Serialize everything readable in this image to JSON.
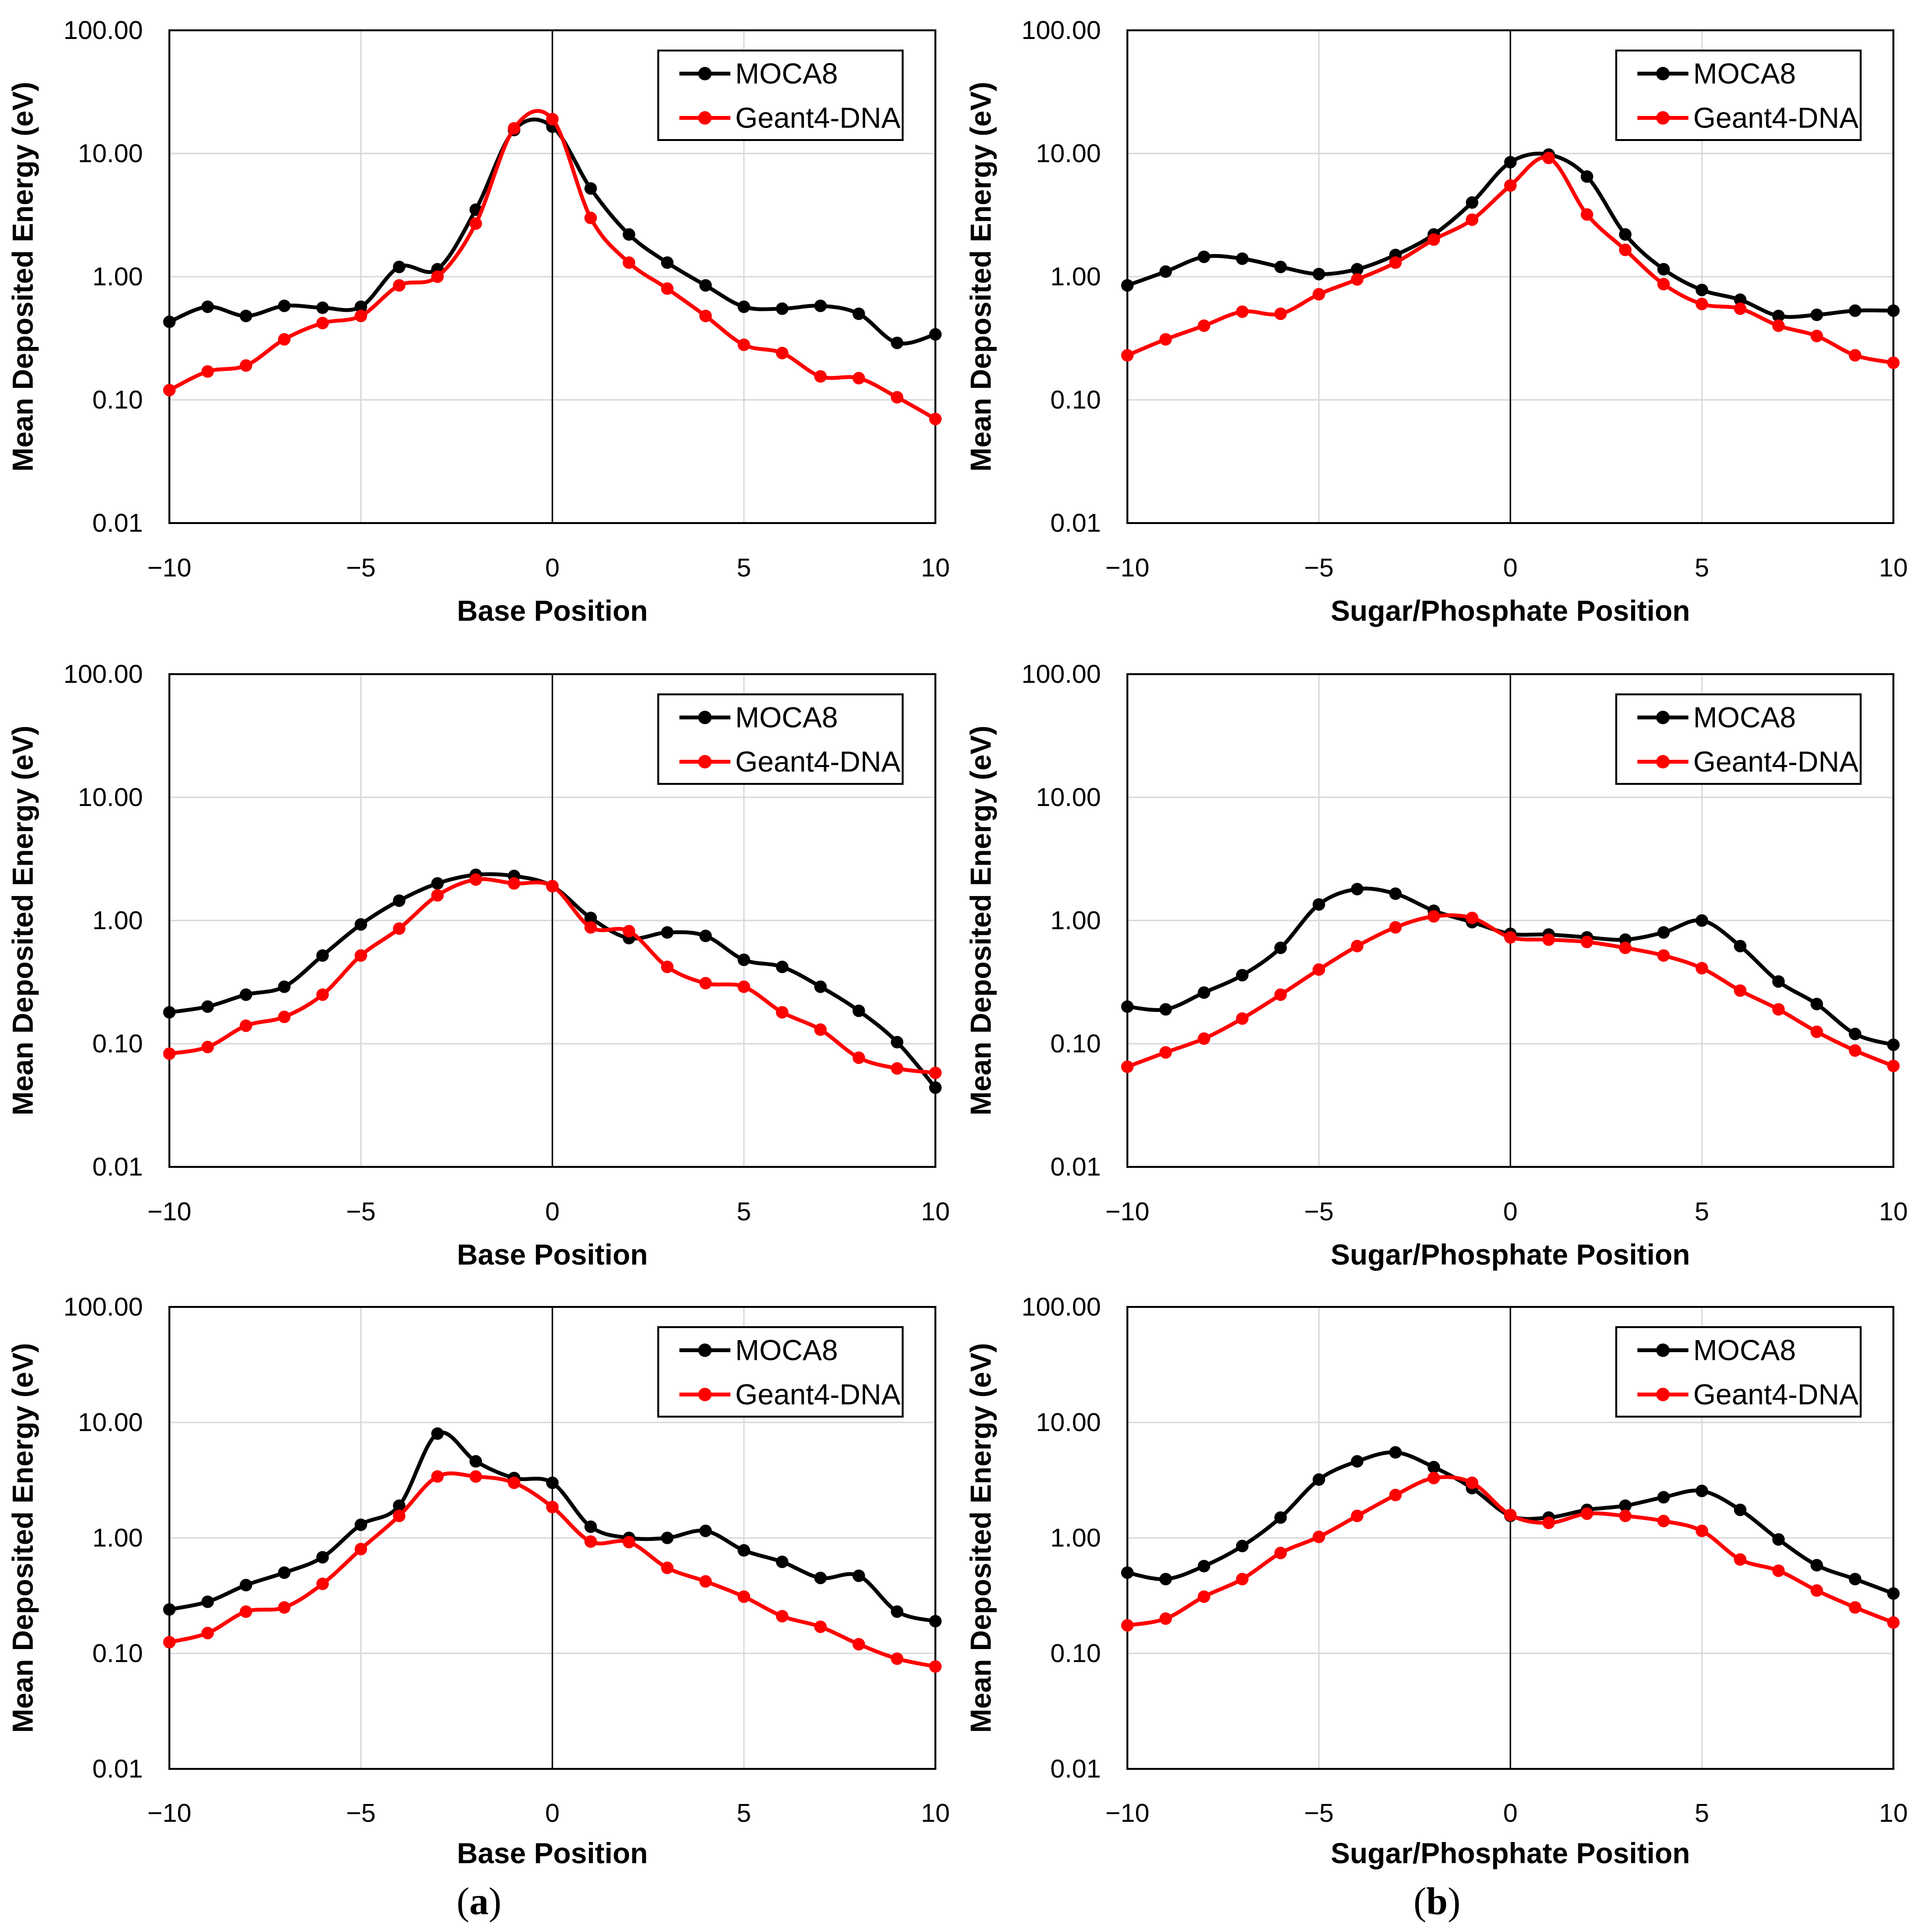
{
  "figure": {
    "y_axis_label": "Mean Deposited Energy (eV)",
    "y_tick_labels": [
      "100.00",
      "10.00",
      "1.00",
      "0.10",
      "0.01"
    ],
    "y_tick_values": [
      100,
      10,
      1,
      0.1,
      0.01
    ],
    "x_tick_labels": [
      "−10",
      "−5",
      "0",
      "5",
      "10"
    ],
    "x_tick_values": [
      -10,
      -5,
      0,
      5,
      10
    ],
    "colors": {
      "moca8": "#000000",
      "geant4_dna": "#FF0000",
      "gridline": "#D9D9D9",
      "axis": "#000000",
      "background": "#FFFFFF"
    },
    "legend_labels": [
      "MOCA8",
      "Geant4-DNA"
    ],
    "captions": [
      {
        "open": "(",
        "letter": "a",
        "close": ")"
      },
      {
        "open": "(",
        "letter": "b",
        "close": ")"
      }
    ]
  },
  "chart_data": [
    {
      "type": "line",
      "panel": "top-left",
      "title": "",
      "xlabel": "Base Position",
      "ylabel": "Mean Deposited Energy (eV)",
      "xlim": [
        -10,
        10
      ],
      "ylim": [
        0.01,
        100
      ],
      "yscale": "log",
      "grid": true,
      "legend_position": "top-right",
      "x": [
        -10,
        -9,
        -8,
        -7,
        -6,
        -5,
        -4,
        -3,
        -2,
        -1,
        0,
        1,
        2,
        3,
        4,
        5,
        6,
        7,
        8,
        9,
        10
      ],
      "series": [
        {
          "name": "MOCA8",
          "color": "#000000",
          "values": [
            0.43,
            0.57,
            0.48,
            0.58,
            0.56,
            0.57,
            1.2,
            1.15,
            3.5,
            15.5,
            16.5,
            5.2,
            2.2,
            1.3,
            0.85,
            0.57,
            0.55,
            0.58,
            0.5,
            0.29,
            0.34
          ]
        },
        {
          "name": "Geant4-DNA",
          "color": "#FF0000",
          "values": [
            0.12,
            0.17,
            0.19,
            0.31,
            0.42,
            0.48,
            0.85,
            1.0,
            2.7,
            16.0,
            19.0,
            3.0,
            1.3,
            0.8,
            0.48,
            0.28,
            0.24,
            0.155,
            0.15,
            0.105,
            0.07
          ]
        }
      ]
    },
    {
      "type": "line",
      "panel": "top-right",
      "title": "",
      "xlabel": "Sugar/Phosphate Position",
      "ylabel": "Mean Deposited Energy (eV)",
      "xlim": [
        -10,
        10
      ],
      "ylim": [
        0.01,
        100
      ],
      "yscale": "log",
      "grid": true,
      "legend_position": "top-right",
      "x": [
        -10,
        -9,
        -8,
        -7,
        -6,
        -5,
        -4,
        -3,
        -2,
        -1,
        0,
        1,
        2,
        3,
        4,
        5,
        6,
        7,
        8,
        9,
        10
      ],
      "series": [
        {
          "name": "MOCA8",
          "color": "#000000",
          "values": [
            0.85,
            1.1,
            1.45,
            1.4,
            1.2,
            1.05,
            1.15,
            1.5,
            2.2,
            4.0,
            8.5,
            9.8,
            6.5,
            2.2,
            1.15,
            0.78,
            0.65,
            0.48,
            0.49,
            0.53,
            0.53
          ]
        },
        {
          "name": "Geant4-DNA",
          "color": "#FF0000",
          "values": [
            0.23,
            0.31,
            0.4,
            0.52,
            0.5,
            0.72,
            0.95,
            1.3,
            2.0,
            2.9,
            5.5,
            9.2,
            3.2,
            1.65,
            0.87,
            0.6,
            0.55,
            0.4,
            0.33,
            0.23,
            0.2
          ]
        }
      ]
    },
    {
      "type": "line",
      "panel": "middle-left",
      "title": "",
      "xlabel": "Base Position",
      "ylabel": "Mean Deposited Energy (eV)",
      "xlim": [
        -10,
        10
      ],
      "ylim": [
        0.01,
        100
      ],
      "yscale": "log",
      "grid": true,
      "legend_position": "top-right",
      "x": [
        -10,
        -9,
        -8,
        -7,
        -6,
        -5,
        -4,
        -3,
        -2,
        -1,
        0,
        1,
        2,
        3,
        4,
        5,
        6,
        7,
        8,
        9,
        10
      ],
      "series": [
        {
          "name": "MOCA8",
          "color": "#000000",
          "values": [
            0.18,
            0.2,
            0.25,
            0.29,
            0.52,
            0.93,
            1.45,
            2.0,
            2.35,
            2.3,
            1.9,
            1.05,
            0.72,
            0.8,
            0.75,
            0.48,
            0.42,
            0.29,
            0.185,
            0.103,
            0.044
          ]
        },
        {
          "name": "Geant4-DNA",
          "color": "#FF0000",
          "values": [
            0.083,
            0.094,
            0.14,
            0.165,
            0.25,
            0.52,
            0.86,
            1.6,
            2.15,
            2.0,
            1.9,
            0.88,
            0.82,
            0.42,
            0.31,
            0.29,
            0.18,
            0.13,
            0.077,
            0.063,
            0.058
          ]
        }
      ]
    },
    {
      "type": "line",
      "panel": "middle-right",
      "title": "",
      "xlabel": "Sugar/Phosphate Position",
      "ylabel": "Mean Deposited Energy (eV)",
      "xlim": [
        -10,
        10
      ],
      "ylim": [
        0.01,
        100
      ],
      "yscale": "log",
      "grid": true,
      "legend_position": "top-right",
      "x": [
        -10,
        -9,
        -8,
        -7,
        -6,
        -5,
        -4,
        -3,
        -2,
        -1,
        0,
        1,
        2,
        3,
        4,
        5,
        6,
        7,
        8,
        9,
        10
      ],
      "series": [
        {
          "name": "MOCA8",
          "color": "#000000",
          "values": [
            0.2,
            0.19,
            0.26,
            0.36,
            0.6,
            1.35,
            1.8,
            1.65,
            1.2,
            0.97,
            0.78,
            0.77,
            0.73,
            0.7,
            0.8,
            1.0,
            0.62,
            0.32,
            0.21,
            0.12,
            0.098
          ]
        },
        {
          "name": "Geant4-DNA",
          "color": "#FF0000",
          "values": [
            0.065,
            0.085,
            0.11,
            0.16,
            0.25,
            0.4,
            0.62,
            0.88,
            1.08,
            1.05,
            0.73,
            0.7,
            0.67,
            0.6,
            0.52,
            0.41,
            0.27,
            0.19,
            0.125,
            0.088,
            0.066
          ]
        }
      ]
    },
    {
      "type": "line",
      "panel": "bottom-left",
      "title": "",
      "xlabel": "Base Position",
      "ylabel": "Mean Deposited Energy (eV)",
      "xlim": [
        -10,
        10
      ],
      "ylim": [
        0.01,
        100
      ],
      "yscale": "log",
      "grid": true,
      "legend_position": "top-right",
      "x": [
        -10,
        -9,
        -8,
        -7,
        -6,
        -5,
        -4,
        -3,
        -2,
        -1,
        0,
        1,
        2,
        3,
        4,
        5,
        6,
        7,
        8,
        9,
        10
      ],
      "series": [
        {
          "name": "MOCA8",
          "color": "#000000",
          "values": [
            0.24,
            0.28,
            0.39,
            0.5,
            0.68,
            1.3,
            1.9,
            8.0,
            4.6,
            3.3,
            3.0,
            1.25,
            1.0,
            1.0,
            1.15,
            0.78,
            0.62,
            0.45,
            0.47,
            0.23,
            0.19
          ]
        },
        {
          "name": "Geant4-DNA",
          "color": "#FF0000",
          "values": [
            0.125,
            0.15,
            0.23,
            0.25,
            0.4,
            0.8,
            1.55,
            3.4,
            3.4,
            3.0,
            1.85,
            0.93,
            0.92,
            0.55,
            0.42,
            0.31,
            0.21,
            0.17,
            0.12,
            0.09,
            0.077
          ]
        }
      ]
    },
    {
      "type": "line",
      "panel": "bottom-right",
      "title": "",
      "xlabel": "Sugar/Phosphate Position",
      "ylabel": "Mean Deposited Energy (eV)",
      "xlim": [
        -10,
        10
      ],
      "ylim": [
        0.01,
        100
      ],
      "yscale": "log",
      "grid": true,
      "legend_position": "top-right",
      "x": [
        -10,
        -9,
        -8,
        -7,
        -6,
        -5,
        -4,
        -3,
        -2,
        -1,
        0,
        1,
        2,
        3,
        4,
        5,
        6,
        7,
        8,
        9,
        10
      ],
      "series": [
        {
          "name": "MOCA8",
          "color": "#000000",
          "values": [
            0.5,
            0.44,
            0.57,
            0.85,
            1.5,
            3.2,
            4.6,
            5.5,
            4.1,
            2.7,
            1.55,
            1.5,
            1.75,
            1.9,
            2.25,
            2.55,
            1.75,
            0.97,
            0.58,
            0.44,
            0.33
          ]
        },
        {
          "name": "Geant4-DNA",
          "color": "#FF0000",
          "values": [
            0.175,
            0.2,
            0.31,
            0.44,
            0.74,
            1.02,
            1.55,
            2.35,
            3.3,
            3.0,
            1.58,
            1.35,
            1.62,
            1.55,
            1.4,
            1.15,
            0.65,
            0.52,
            0.35,
            0.25,
            0.185
          ]
        }
      ]
    }
  ]
}
